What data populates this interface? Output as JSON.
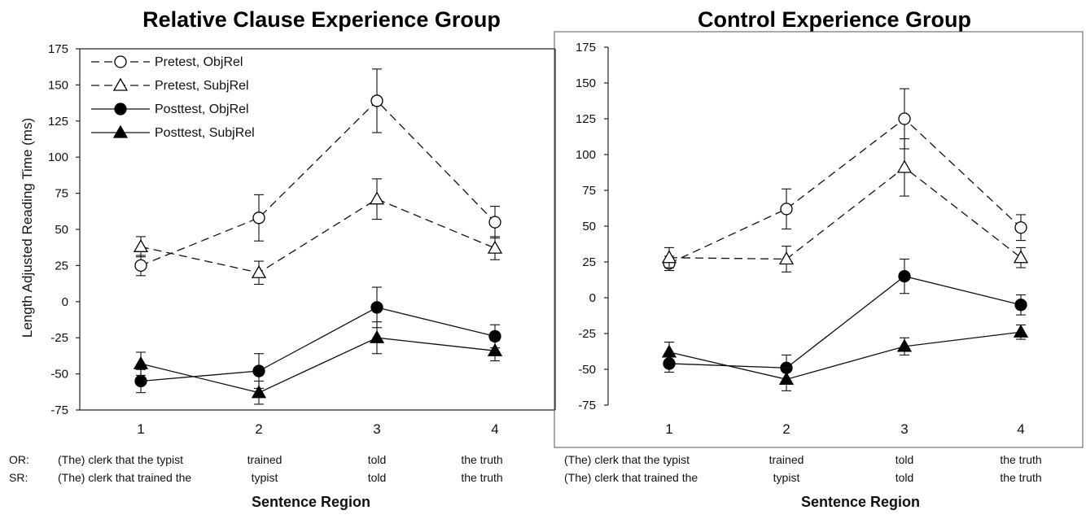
{
  "chart_data": [
    {
      "type": "line",
      "title": "Relative Clause Experience Group",
      "ylabel": "Length Adjusted Reading Time (ms)",
      "xlabel": "Sentence Region",
      "x": [
        1,
        2,
        3,
        4
      ],
      "ylim": [
        -75,
        175
      ],
      "yticks": [
        175,
        150,
        125,
        100,
        75,
        50,
        25,
        0,
        -25,
        -50,
        -75
      ],
      "grid": false,
      "legend_position": "top-left",
      "region_labels": {
        "prefixes": [
          "OR:",
          "SR:"
        ],
        "or": [
          "(The) clerk that the typist",
          "trained",
          "told",
          "the truth"
        ],
        "sr": [
          "(The) clerk that trained the",
          "typist",
          "told",
          "the truth"
        ]
      },
      "series": [
        {
          "name": "Pretest, ObjRel",
          "marker": "circle-open",
          "line": "dashed",
          "values": [
            25,
            58,
            139,
            55
          ],
          "errors": [
            7,
            16,
            22,
            11
          ]
        },
        {
          "name": "Pretest, SubjRel",
          "marker": "triangle-open",
          "line": "dashed",
          "values": [
            38,
            20,
            71,
            37
          ],
          "errors": [
            7,
            8,
            14,
            8
          ]
        },
        {
          "name": "Posttest, ObjRel",
          "marker": "circle-filled",
          "line": "solid",
          "values": [
            -55,
            -48,
            -4,
            -24
          ],
          "errors": [
            8,
            12,
            14,
            8
          ]
        },
        {
          "name": "Posttest, SubjRel",
          "marker": "triangle-filled",
          "line": "solid",
          "values": [
            -43,
            -63,
            -25,
            -34
          ],
          "errors": [
            8,
            8,
            11,
            7
          ]
        }
      ]
    },
    {
      "type": "line",
      "title": "Control Experience Group",
      "ylabel": "",
      "xlabel": "Sentence Region",
      "x": [
        1,
        2,
        3,
        4
      ],
      "ylim": [
        -75,
        175
      ],
      "yticks": [
        175,
        150,
        125,
        100,
        75,
        50,
        25,
        0,
        -25,
        -50,
        -75
      ],
      "grid": false,
      "legend_position": "none",
      "region_labels": {
        "prefixes": [
          "",
          ""
        ],
        "or": [
          "(The) clerk that the typist",
          "trained",
          "told",
          "the truth"
        ],
        "sr": [
          "(The) clerk that trained the",
          "typist",
          "told",
          "the truth"
        ]
      },
      "series": [
        {
          "name": "Pretest, ObjRel",
          "marker": "circle-open",
          "line": "dashed",
          "values": [
            24,
            62,
            125,
            49
          ],
          "errors": [
            5,
            14,
            21,
            9
          ]
        },
        {
          "name": "Pretest, SubjRel",
          "marker": "triangle-open",
          "line": "dashed",
          "values": [
            28,
            27,
            91,
            28
          ],
          "errors": [
            7,
            9,
            20,
            7
          ]
        },
        {
          "name": "Posttest, ObjRel",
          "marker": "circle-filled",
          "line": "solid",
          "values": [
            -46,
            -49,
            15,
            -5
          ],
          "errors": [
            6,
            9,
            12,
            7
          ]
        },
        {
          "name": "Posttest, SubjRel",
          "marker": "triangle-filled",
          "line": "solid",
          "values": [
            -38,
            -57,
            -34,
            -24
          ],
          "errors": [
            7,
            8,
            6,
            5
          ]
        }
      ]
    }
  ]
}
